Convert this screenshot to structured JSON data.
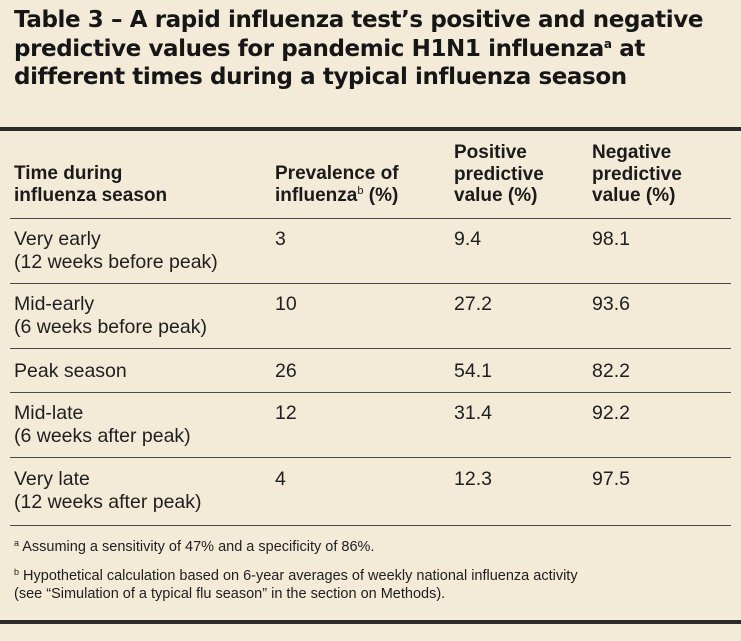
{
  "title": {
    "line1": "Table 3 – A rapid influenza test’s positive and negative",
    "line2_pre": "predictive values for pandemic H1N1 influenza",
    "line2_sup": "a",
    "line2_post": " at",
    "line3": "different times during a typical influenza season"
  },
  "headers": {
    "time_l1": "Time during",
    "time_l2": "influenza season",
    "prev_l1": "Prevalence of",
    "prev_l2_pre": "influenza",
    "prev_l2_sup": "b",
    "prev_l2_post": " (%)",
    "ppv_l1": "Positive",
    "ppv_l2": "predictive",
    "ppv_l3": "value (%)",
    "npv_l1": "Negative",
    "npv_l2": "predictive",
    "npv_l3": "value (%)"
  },
  "rows": [
    {
      "time_l1": "Very early",
      "time_l2": "(12 weeks before peak)",
      "prevalence": "3",
      "ppv": "9.4",
      "npv": "98.1"
    },
    {
      "time_l1": "Mid-early",
      "time_l2": "(6 weeks before peak)",
      "prevalence": "10",
      "ppv": "27.2",
      "npv": "93.6"
    },
    {
      "time_l1": "Peak season",
      "time_l2": "",
      "prevalence": "26",
      "ppv": "54.1",
      "npv": "82.2"
    },
    {
      "time_l1": "Mid-late",
      "time_l2": "(6 weeks after peak)",
      "prevalence": "12",
      "ppv": "31.4",
      "npv": "92.2"
    },
    {
      "time_l1": "Very late",
      "time_l2": "(12 weeks after peak)",
      "prevalence": "4",
      "ppv": "12.3",
      "npv": "97.5"
    }
  ],
  "footnotes": {
    "a_mark": "a",
    "a_text": " Assuming a sensitivity of 47% and a specificity of 86%.",
    "b_mark": "b",
    "b_text_l1": " Hypothetical calculation based on 6-year averages of weekly national influenza activity",
    "b_text_l2": "(see “Simulation of a typical flu season” in the section on Methods)."
  }
}
